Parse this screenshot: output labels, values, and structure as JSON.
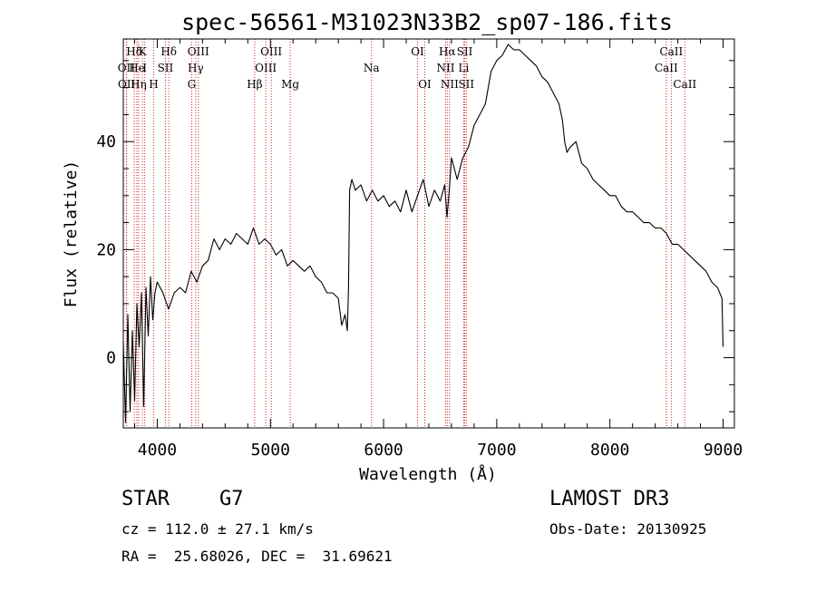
{
  "chart_data": {
    "type": "line",
    "title": "spec-56561-M31023N33B2_sp07-186.fits",
    "xlabel": "Wavelength (Å)",
    "ylabel": "Flux (relative)",
    "xlim": [
      3700,
      9100
    ],
    "ylim": [
      -13,
      59
    ],
    "x_ticks": [
      4000,
      5000,
      6000,
      7000,
      8000,
      9000
    ],
    "y_ticks": [
      0,
      20,
      40
    ],
    "grid": false,
    "series": [
      {
        "color": "#000000",
        "x": [
          3700,
          3720,
          3740,
          3760,
          3780,
          3800,
          3820,
          3840,
          3860,
          3880,
          3900,
          3920,
          3940,
          3960,
          3980,
          4000,
          4050,
          4100,
          4150,
          4200,
          4250,
          4300,
          4350,
          4400,
          4450,
          4500,
          4550,
          4600,
          4650,
          4700,
          4750,
          4800,
          4850,
          4900,
          4950,
          5000,
          5050,
          5100,
          5150,
          5200,
          5250,
          5300,
          5350,
          5400,
          5450,
          5500,
          5550,
          5600,
          5630,
          5660,
          5680,
          5690,
          5700,
          5720,
          5750,
          5800,
          5850,
          5900,
          5950,
          6000,
          6050,
          6100,
          6150,
          6200,
          6250,
          6300,
          6350,
          6400,
          6450,
          6500,
          6540,
          6560,
          6580,
          6600,
          6650,
          6700,
          6750,
          6800,
          6850,
          6900,
          6950,
          7000,
          7050,
          7100,
          7150,
          7200,
          7250,
          7300,
          7350,
          7400,
          7450,
          7500,
          7550,
          7580,
          7600,
          7620,
          7650,
          7700,
          7750,
          7800,
          7850,
          7900,
          7950,
          8000,
          8050,
          8100,
          8150,
          8200,
          8250,
          8300,
          8350,
          8400,
          8450,
          8500,
          8550,
          8600,
          8650,
          8700,
          8750,
          8800,
          8850,
          8900,
          8950,
          8990,
          9000
        ],
        "y": [
          3,
          -12,
          8,
          -10,
          5,
          -8,
          10,
          2,
          12,
          -9,
          13,
          4,
          15,
          7,
          12,
          14,
          12,
          9,
          12,
          13,
          12,
          16,
          14,
          17,
          18,
          22,
          20,
          22,
          21,
          23,
          22,
          21,
          24,
          21,
          22,
          21,
          19,
          20,
          17,
          18,
          17,
          16,
          17,
          15,
          14,
          12,
          12,
          11,
          6,
          8,
          5,
          13,
          31,
          33,
          31,
          32,
          29,
          31,
          29,
          30,
          28,
          29,
          27,
          31,
          27,
          30,
          33,
          28,
          31,
          29,
          32,
          26,
          31,
          37,
          33,
          37,
          39,
          43,
          45,
          47,
          53,
          55,
          56,
          58,
          57,
          57,
          56,
          55,
          54,
          52,
          51,
          49,
          47,
          44,
          40,
          38,
          39,
          40,
          36,
          35,
          33,
          32,
          31,
          30,
          30,
          28,
          27,
          27,
          26,
          25,
          25,
          24,
          24,
          23,
          21,
          21,
          20,
          19,
          18,
          17,
          16,
          14,
          13,
          11,
          2
        ]
      }
    ],
    "line_labels": [
      {
        "text": "Hδ",
        "x": 3797,
        "row": 0
      },
      {
        "text": "K",
        "x": 3870,
        "row": 0
      },
      {
        "text": "Hδ",
        "x": 4102,
        "row": 0
      },
      {
        "text": "OIII",
        "x": 4363,
        "row": 0
      },
      {
        "text": "OIII",
        "x": 5007,
        "row": 0
      },
      {
        "text": "OI",
        "x": 6300,
        "row": 0
      },
      {
        "text": "Hα",
        "x": 6563,
        "row": 0
      },
      {
        "text": "SII",
        "x": 6717,
        "row": 0
      },
      {
        "text": "CaII",
        "x": 8542,
        "row": 0
      },
      {
        "text": "OII",
        "x": 3727,
        "row": 1
      },
      {
        "text": "He",
        "x": 3820,
        "row": 1
      },
      {
        "text": "I",
        "x": 3889,
        "row": 1
      },
      {
        "text": "SII",
        "x": 4072,
        "row": 1
      },
      {
        "text": "Hγ",
        "x": 4340,
        "row": 1
      },
      {
        "text": "OIII",
        "x": 4959,
        "row": 1
      },
      {
        "text": "Na",
        "x": 5893,
        "row": 1
      },
      {
        "text": "NII",
        "x": 6548,
        "row": 1
      },
      {
        "text": "Li",
        "x": 6708,
        "row": 1
      },
      {
        "text": "CaII",
        "x": 8498,
        "row": 1
      },
      {
        "text": "OII",
        "x": 3729,
        "row": 2
      },
      {
        "text": "Hη",
        "x": 3835,
        "row": 2
      },
      {
        "text": "H",
        "x": 3968,
        "row": 2
      },
      {
        "text": "G",
        "x": 4304,
        "row": 2
      },
      {
        "text": "Hβ",
        "x": 4861,
        "row": 2
      },
      {
        "text": "Mg",
        "x": 5175,
        "row": 2
      },
      {
        "text": "OI",
        "x": 6364,
        "row": 2
      },
      {
        "text": "NII",
        "x": 6583,
        "row": 2
      },
      {
        "text": "SII",
        "x": 6731,
        "row": 2
      },
      {
        "text": "CaII",
        "x": 8662,
        "row": 2
      }
    ],
    "marker_lines_x": [
      3727,
      3729,
      3797,
      3820,
      3835,
      3870,
      3889,
      3968,
      4072,
      4102,
      4304,
      4340,
      4363,
      4861,
      4959,
      5007,
      5175,
      5893,
      6300,
      6364,
      6548,
      6563,
      6583,
      6708,
      6717,
      6731,
      8498,
      8542,
      8662
    ]
  },
  "info": {
    "object_class": "STAR",
    "subclass": "G7",
    "survey": "LAMOST DR3",
    "redshift": "cz = 112.0 ± 27.1 km/s",
    "obs_date": "Obs-Date: 20130925",
    "coords": "RA =  25.68026, DEC =  31.69621"
  }
}
